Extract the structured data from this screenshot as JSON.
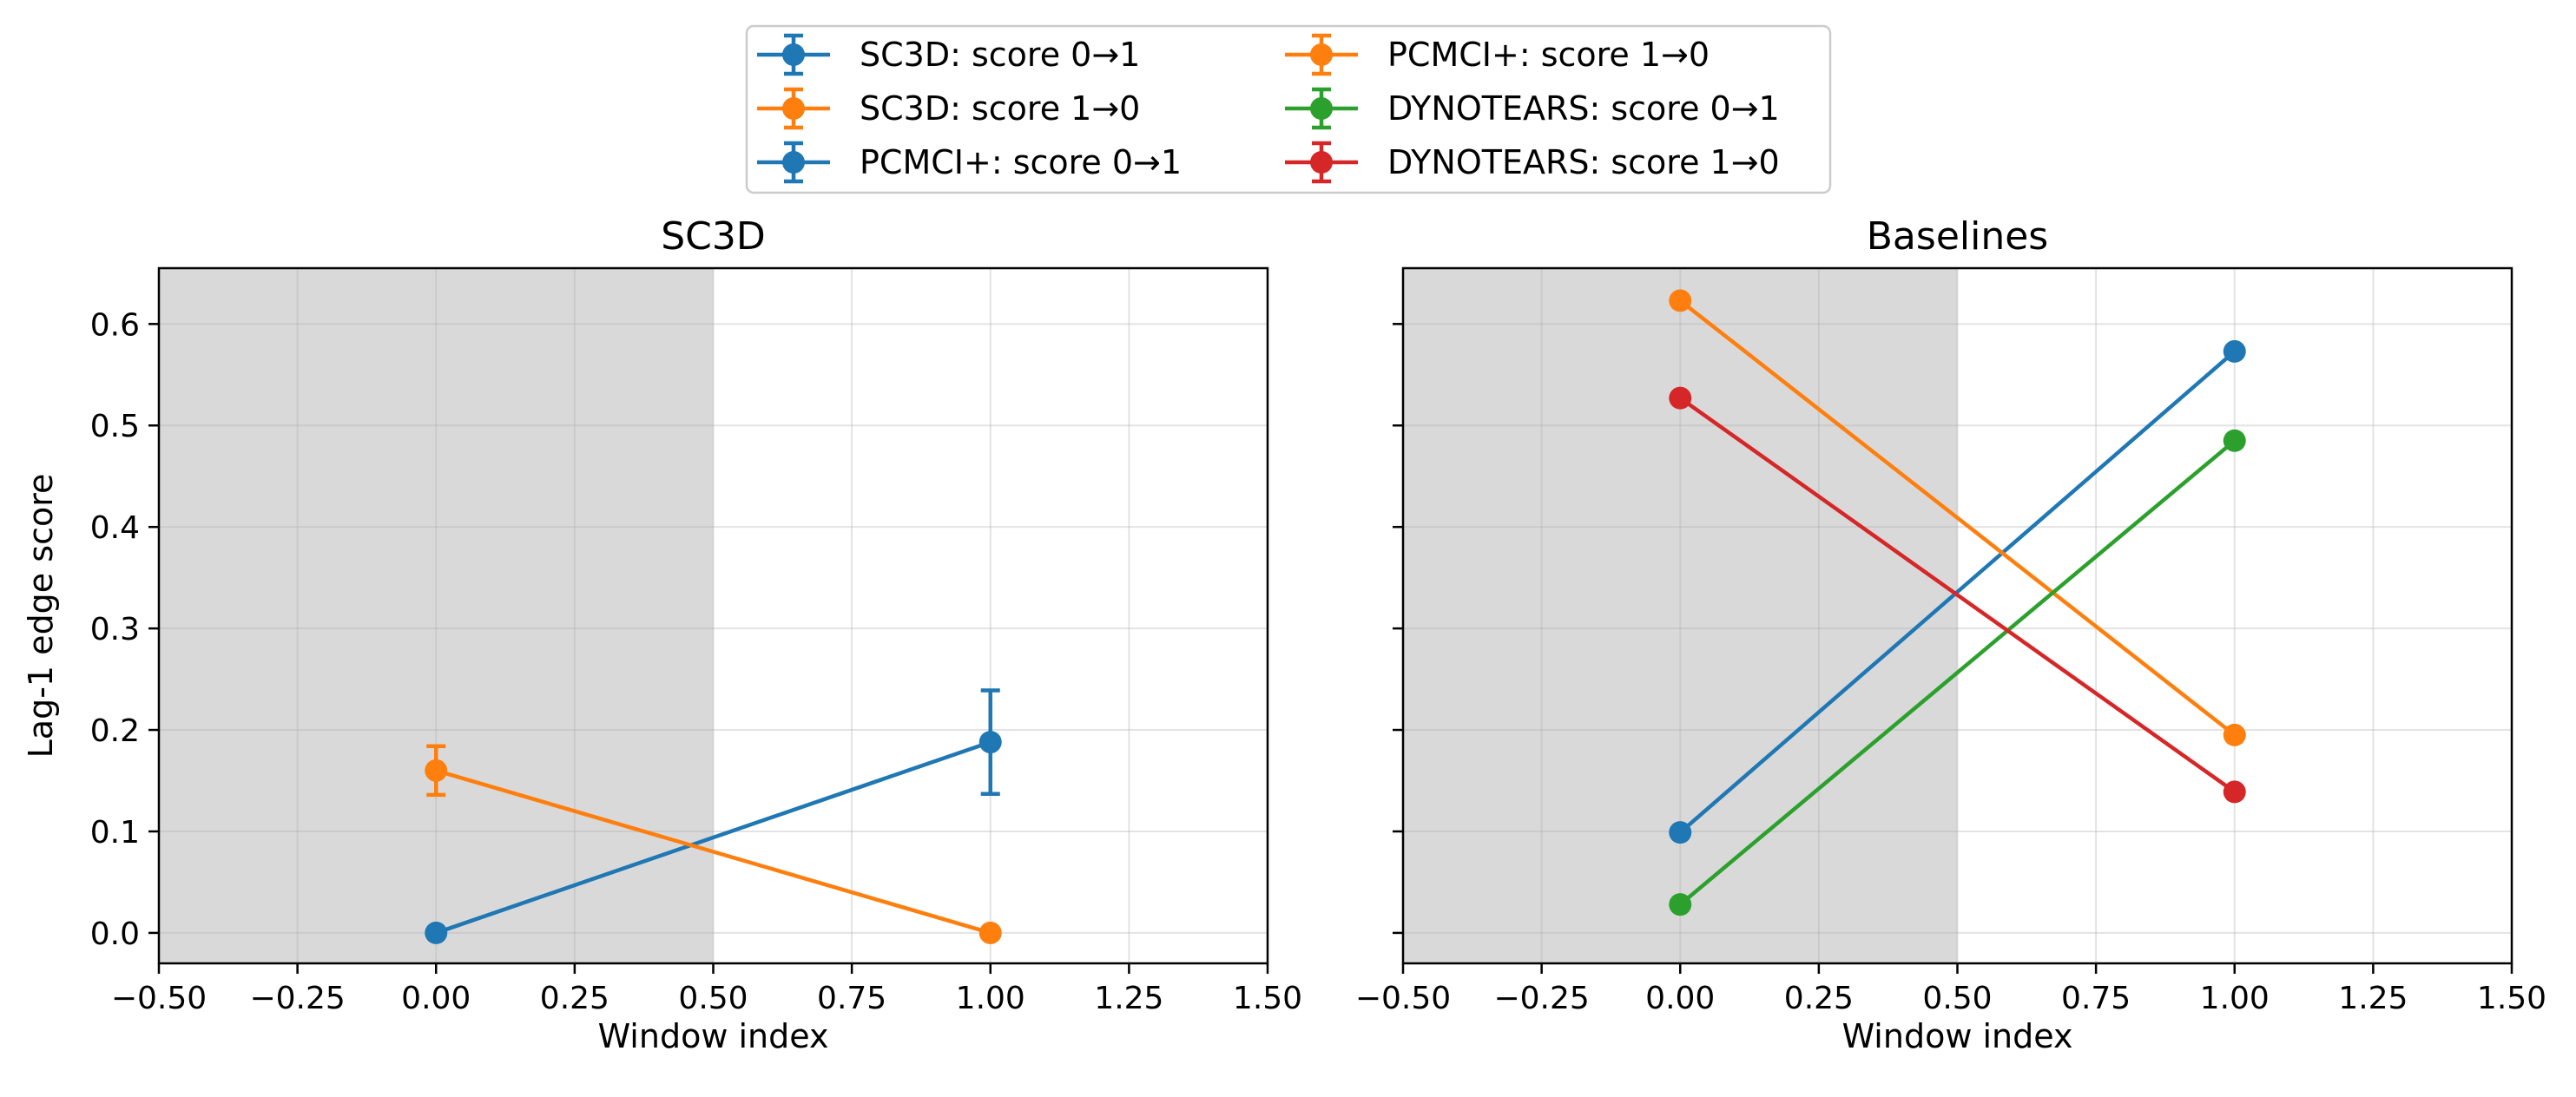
{
  "chart_data": [
    {
      "type": "line",
      "title": "SC3D",
      "xlabel": "Window index",
      "ylabel": "Lag-1 edge score",
      "xlim": [
        -0.5,
        1.5
      ],
      "ylim": [
        -0.03,
        0.655
      ],
      "xticks": [
        -0.5,
        -0.25,
        0.0,
        0.25,
        0.5,
        0.75,
        1.0,
        1.25,
        1.5
      ],
      "xtick_labels": [
        "−0.50",
        "−0.25",
        "0.00",
        "0.25",
        "0.50",
        "0.75",
        "1.00",
        "1.25",
        "1.50"
      ],
      "yticks": [
        0.0,
        0.1,
        0.2,
        0.3,
        0.4,
        0.5,
        0.6
      ],
      "ytick_labels": [
        "0.0",
        "0.1",
        "0.2",
        "0.3",
        "0.4",
        "0.5",
        "0.6"
      ],
      "shaded_x_range": [
        -0.5,
        0.5
      ],
      "grid": true,
      "series": [
        {
          "name": "SC3D: score 0→1",
          "color": "#1f77b4",
          "x": [
            0,
            1
          ],
          "y": [
            0.0,
            0.188
          ],
          "yerr": [
            0.0,
            0.051
          ]
        },
        {
          "name": "SC3D: score 1→0",
          "color": "#ff7f0e",
          "x": [
            0,
            1
          ],
          "y": [
            0.16,
            0.0
          ],
          "yerr": [
            0.024,
            0.0
          ]
        }
      ]
    },
    {
      "type": "line",
      "title": "Baselines",
      "xlabel": "Window index",
      "ylabel": "",
      "xlim": [
        -0.5,
        1.5
      ],
      "ylim": [
        -0.03,
        0.655
      ],
      "xticks": [
        -0.5,
        -0.25,
        0.0,
        0.25,
        0.5,
        0.75,
        1.0,
        1.25,
        1.5
      ],
      "xtick_labels": [
        "−0.50",
        "−0.25",
        "0.00",
        "0.25",
        "0.50",
        "0.75",
        "1.00",
        "1.25",
        "1.50"
      ],
      "yticks": [
        0.0,
        0.1,
        0.2,
        0.3,
        0.4,
        0.5,
        0.6
      ],
      "ytick_labels": [],
      "shaded_x_range": [
        -0.5,
        0.5
      ],
      "grid": true,
      "series": [
        {
          "name": "PCMCI+: score 0→1",
          "color": "#1f77b4",
          "x": [
            0,
            1
          ],
          "y": [
            0.099,
            0.573
          ],
          "yerr": [
            0.0,
            0.0
          ]
        },
        {
          "name": "PCMCI+: score 1→0",
          "color": "#ff7f0e",
          "x": [
            0,
            1
          ],
          "y": [
            0.623,
            0.195
          ],
          "yerr": [
            0.0,
            0.0
          ]
        },
        {
          "name": "DYNOTEARS: score 0→1",
          "color": "#2ca02c",
          "x": [
            0,
            1
          ],
          "y": [
            0.028,
            0.485
          ],
          "yerr": [
            0.0,
            0.0
          ]
        },
        {
          "name": "DYNOTEARS: score 1→0",
          "color": "#d62728",
          "x": [
            0,
            1
          ],
          "y": [
            0.527,
            0.139
          ],
          "yerr": [
            0.0,
            0.0
          ]
        }
      ]
    }
  ],
  "legend": {
    "placement": "upper-center",
    "columns": 2,
    "entries": [
      {
        "label": "SC3D: score 0→1",
        "color": "#1f77b4"
      },
      {
        "label": "SC3D: score 1→0",
        "color": "#ff7f0e"
      },
      {
        "label": "PCMCI+: score 0→1",
        "color": "#1f77b4"
      },
      {
        "label": "PCMCI+: score 1→0",
        "color": "#ff7f0e"
      },
      {
        "label": "DYNOTEARS: score 0→1",
        "color": "#2ca02c"
      },
      {
        "label": "DYNOTEARS: score 1→0",
        "color": "#d62728"
      }
    ]
  }
}
